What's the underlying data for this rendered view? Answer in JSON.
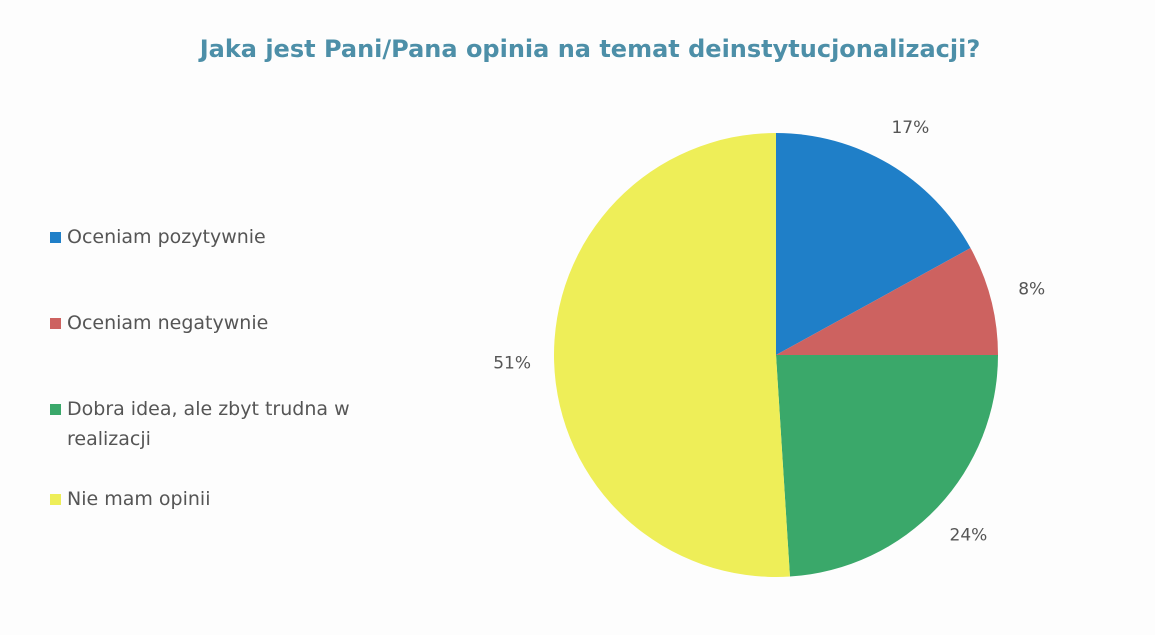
{
  "chart_data": {
    "type": "pie",
    "title": "Jaka jest Pani/Pana opinia na temat deinstytucjonalizacji?",
    "categories": [
      "Oceniam pozytywnie",
      "Oceniam negatywnie",
      "Dobra idea, ale zbyt trudna w realizacji",
      "Nie mam opinii"
    ],
    "values": [
      17,
      8,
      24,
      51
    ],
    "value_labels": [
      "17%",
      "8%",
      "24%",
      "51%"
    ],
    "colors": [
      "#1f7fc8",
      "#cd6260",
      "#3aa86a",
      "#eeee58"
    ],
    "legend": "left"
  }
}
